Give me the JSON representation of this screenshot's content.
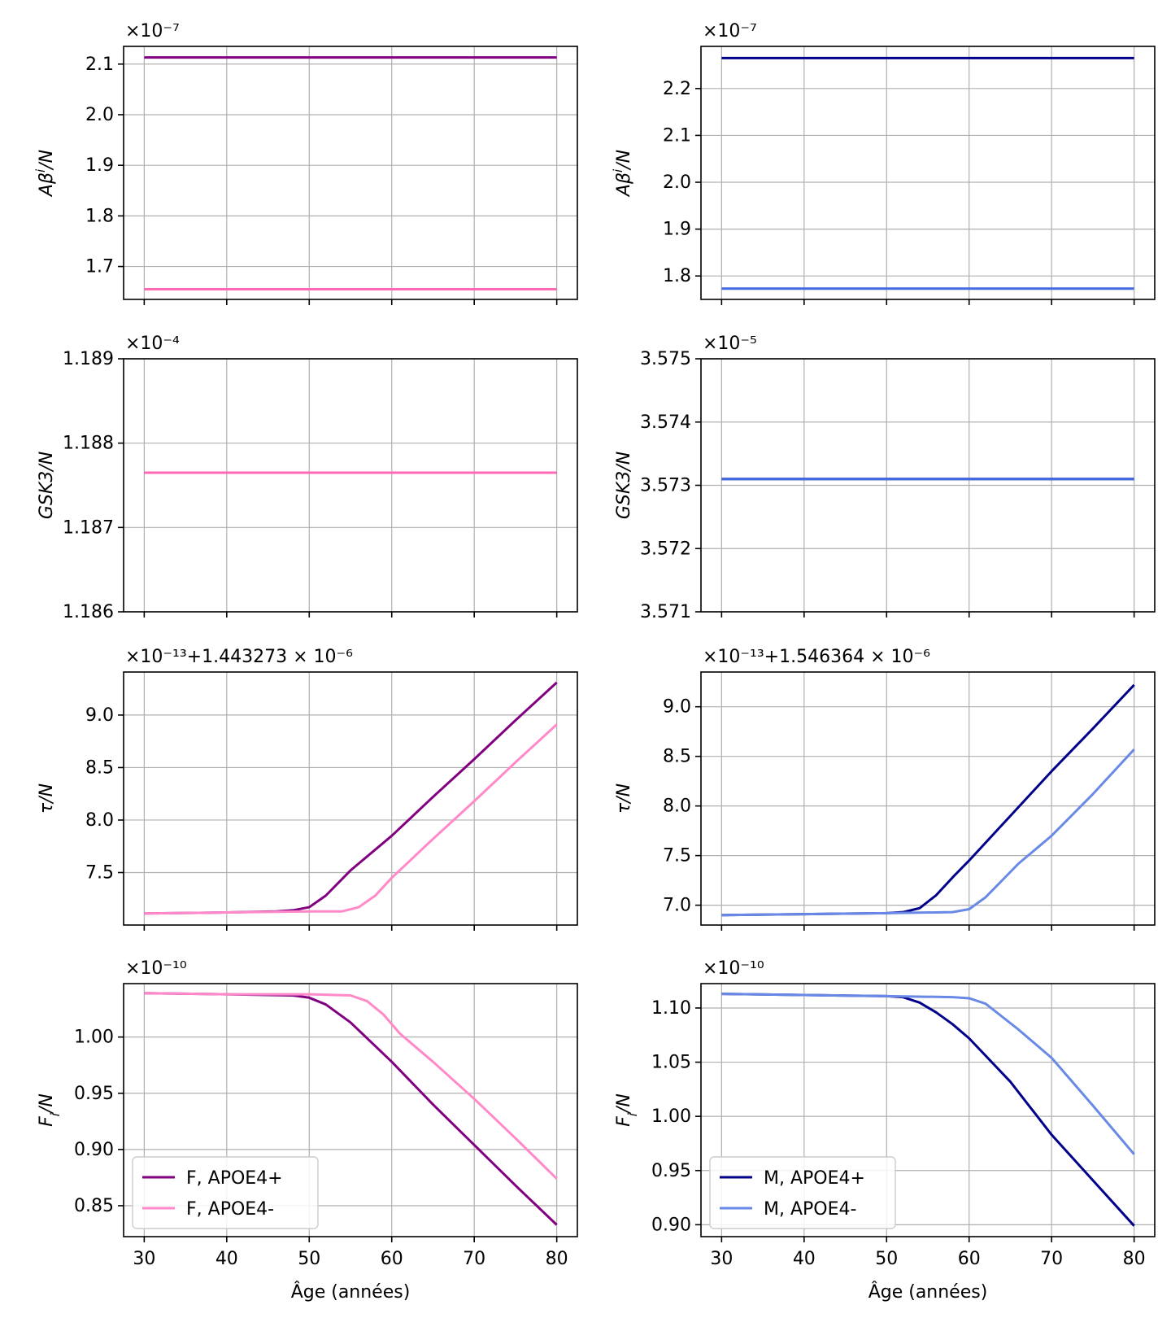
{
  "figure": {
    "x_common_label": "Âge (années)",
    "legend_left": [
      "F, APOE4+",
      "F, APOE4-"
    ],
    "legend_right": [
      "M, APOE4+",
      "M, APOE4-"
    ]
  },
  "chart_data": [
    {
      "type": "line",
      "position": "row1-left",
      "ylabel": "Aβ^i/N",
      "offset_text": "×10⁻⁷",
      "xlim": [
        27.5,
        82.5
      ],
      "ylim": [
        1.635,
        2.135
      ],
      "yticks": [
        1.7,
        1.8,
        1.9,
        2.0,
        2.1
      ],
      "ytick_labels": [
        "1.7",
        "1.8",
        "1.9",
        "2.0",
        "2.1"
      ],
      "xticks": [
        30,
        40,
        50,
        60,
        70,
        80
      ],
      "show_xtick_labels": false,
      "grid": true,
      "series": [
        {
          "color": "#800080",
          "x": [
            30,
            80
          ],
          "y": [
            2.113,
            2.113
          ]
        },
        {
          "color": "#ff69b4",
          "x": [
            30,
            80
          ],
          "y": [
            1.655,
            1.655
          ]
        }
      ]
    },
    {
      "type": "line",
      "position": "row1-right",
      "ylabel": "Aβ^i/N",
      "offset_text": "×10⁻⁷",
      "xlim": [
        27.5,
        82.5
      ],
      "ylim": [
        1.75,
        2.29
      ],
      "yticks": [
        1.8,
        1.9,
        2.0,
        2.1,
        2.2
      ],
      "ytick_labels": [
        "1.8",
        "1.9",
        "2.0",
        "2.1",
        "2.2"
      ],
      "xticks": [
        30,
        40,
        50,
        60,
        70,
        80
      ],
      "show_xtick_labels": false,
      "grid": true,
      "series": [
        {
          "color": "#00008b",
          "x": [
            30,
            80
          ],
          "y": [
            2.265,
            2.265
          ]
        },
        {
          "color": "#4169e1",
          "x": [
            30,
            80
          ],
          "y": [
            1.773,
            1.773
          ]
        }
      ]
    },
    {
      "type": "line",
      "position": "row2-left",
      "ylabel": "GSK3/N",
      "offset_text": "×10⁻⁴",
      "xlim": [
        27.5,
        82.5
      ],
      "ylim": [
        1.186,
        1.189
      ],
      "yticks": [
        1.186,
        1.187,
        1.188,
        1.189
      ],
      "ytick_labels": [
        "1.186",
        "1.187",
        "1.188",
        "1.189"
      ],
      "xticks": [
        30,
        40,
        50,
        60,
        70,
        80
      ],
      "show_xtick_labels": false,
      "grid": true,
      "series": [
        {
          "color": "#800080",
          "x": [
            30,
            80
          ],
          "y": [
            1.18765,
            1.18765
          ]
        },
        {
          "color": "#ff69b4",
          "x": [
            30,
            80
          ],
          "y": [
            1.18765,
            1.18765
          ]
        }
      ]
    },
    {
      "type": "line",
      "position": "row2-right",
      "ylabel": "GSK3/N",
      "offset_text": "×10⁻⁵",
      "xlim": [
        27.5,
        82.5
      ],
      "ylim": [
        3.571,
        3.575
      ],
      "yticks": [
        3.571,
        3.572,
        3.573,
        3.574,
        3.575
      ],
      "ytick_labels": [
        "3.571",
        "3.572",
        "3.573",
        "3.574",
        "3.575"
      ],
      "xticks": [
        30,
        40,
        50,
        60,
        70,
        80
      ],
      "show_xtick_labels": false,
      "grid": true,
      "series": [
        {
          "color": "#00008b",
          "x": [
            30,
            80
          ],
          "y": [
            3.5731,
            3.5731
          ]
        },
        {
          "color": "#4169e1",
          "x": [
            30,
            80
          ],
          "y": [
            3.5731,
            3.5731
          ]
        }
      ]
    },
    {
      "type": "line",
      "position": "row3-left",
      "ylabel": "τ/N",
      "offset_text": "×10⁻¹³+1.443273 × 10⁻⁶",
      "xlim": [
        27.5,
        82.5
      ],
      "ylim": [
        7.0,
        9.41
      ],
      "yticks": [
        7.5,
        8.0,
        8.5,
        9.0
      ],
      "ytick_labels": [
        "7.5",
        "8.0",
        "8.5",
        "9.0"
      ],
      "xticks": [
        30,
        40,
        50,
        60,
        70,
        80
      ],
      "show_xtick_labels": false,
      "grid": true,
      "series": [
        {
          "color": "#800080",
          "x": [
            30,
            40,
            46,
            48,
            50,
            52,
            55,
            60,
            65,
            70,
            75,
            80
          ],
          "y": [
            7.11,
            7.12,
            7.13,
            7.14,
            7.17,
            7.28,
            7.52,
            7.85,
            8.22,
            8.58,
            8.95,
            9.31
          ]
        },
        {
          "color": "#ff89c9",
          "x": [
            30,
            40,
            50,
            54,
            56,
            58,
            60,
            65,
            70,
            75,
            80
          ],
          "y": [
            7.11,
            7.12,
            7.13,
            7.13,
            7.17,
            7.28,
            7.45,
            7.82,
            8.18,
            8.55,
            8.91
          ]
        }
      ]
    },
    {
      "type": "line",
      "position": "row3-right",
      "ylabel": "τ/N",
      "offset_text": "×10⁻¹³+1.546364 × 10⁻⁶",
      "xlim": [
        27.5,
        82.5
      ],
      "ylim": [
        6.8,
        9.35
      ],
      "yticks": [
        7.0,
        7.5,
        8.0,
        8.5,
        9.0
      ],
      "ytick_labels": [
        "7.0",
        "7.5",
        "8.0",
        "8.5",
        "9.0"
      ],
      "xticks": [
        30,
        40,
        50,
        60,
        70,
        80
      ],
      "show_xtick_labels": false,
      "grid": true,
      "series": [
        {
          "color": "#00008b",
          "x": [
            30,
            40,
            50,
            52,
            54,
            56,
            58,
            60,
            65,
            70,
            75,
            80
          ],
          "y": [
            6.9,
            6.91,
            6.92,
            6.93,
            6.97,
            7.1,
            7.28,
            7.45,
            7.9,
            8.35,
            8.78,
            9.22
          ]
        },
        {
          "color": "#6989e6",
          "x": [
            30,
            40,
            50,
            58,
            60,
            62,
            64,
            66,
            70,
            75,
            80
          ],
          "y": [
            6.9,
            6.91,
            6.92,
            6.93,
            6.96,
            7.08,
            7.25,
            7.42,
            7.7,
            8.12,
            8.57
          ]
        }
      ]
    },
    {
      "type": "line",
      "position": "row4-left",
      "ylabel": "F_i/N",
      "offset_text": "×10⁻¹⁰",
      "xlabel": "Âge (années)",
      "xlim": [
        27.5,
        82.5
      ],
      "ylim": [
        0.8225,
        1.0475
      ],
      "yticks": [
        0.85,
        0.9,
        0.95,
        1.0
      ],
      "ytick_labels": [
        "0.85",
        "0.90",
        "0.95",
        "1.00"
      ],
      "xticks": [
        30,
        40,
        50,
        60,
        70,
        80
      ],
      "xtick_labels": [
        "30",
        "40",
        "50",
        "60",
        "70",
        "80"
      ],
      "show_xtick_labels": true,
      "grid": true,
      "legend": "lower-left",
      "series": [
        {
          "name": "F, APOE4+",
          "color": "#800080",
          "x": [
            30,
            40,
            48,
            50,
            52,
            55,
            60,
            65,
            70,
            75,
            80
          ],
          "y": [
            1.039,
            1.038,
            1.037,
            1.035,
            1.029,
            1.013,
            0.978,
            0.94,
            0.904,
            0.868,
            0.833
          ]
        },
        {
          "name": "F, APOE4-",
          "color": "#ff89c9",
          "x": [
            30,
            40,
            50,
            55,
            57,
            59,
            61,
            65,
            70,
            75,
            80
          ],
          "y": [
            1.039,
            1.038,
            1.038,
            1.037,
            1.032,
            1.02,
            1.003,
            0.978,
            0.945,
            0.91,
            0.874
          ]
        }
      ]
    },
    {
      "type": "line",
      "position": "row4-right",
      "ylabel": "F_i/N",
      "offset_text": "×10⁻¹⁰",
      "xlabel": "Âge (années)",
      "xlim": [
        27.5,
        82.5
      ],
      "ylim": [
        0.889,
        1.1225
      ],
      "yticks": [
        0.9,
        0.95,
        1.0,
        1.05,
        1.1
      ],
      "ytick_labels": [
        "0.90",
        "0.95",
        "1.00",
        "1.05",
        "1.10"
      ],
      "xticks": [
        30,
        40,
        50,
        60,
        70,
        80
      ],
      "xtick_labels": [
        "30",
        "40",
        "50",
        "60",
        "70",
        "80"
      ],
      "show_xtick_labels": true,
      "grid": true,
      "legend": "lower-left",
      "series": [
        {
          "name": "M, APOE4+",
          "color": "#00008b",
          "x": [
            30,
            40,
            50,
            52,
            54,
            56,
            58,
            60,
            65,
            70,
            75,
            80
          ],
          "y": [
            1.113,
            1.112,
            1.111,
            1.11,
            1.105,
            1.096,
            1.085,
            1.072,
            1.032,
            0.983,
            0.941,
            0.899
          ]
        },
        {
          "name": "M, APOE4-",
          "color": "#6989e6",
          "x": [
            30,
            40,
            50,
            58,
            60,
            62,
            64,
            66,
            70,
            75,
            80
          ],
          "y": [
            1.113,
            1.112,
            1.111,
            1.11,
            1.109,
            1.104,
            1.092,
            1.08,
            1.054,
            1.01,
            0.965
          ]
        }
      ]
    }
  ]
}
